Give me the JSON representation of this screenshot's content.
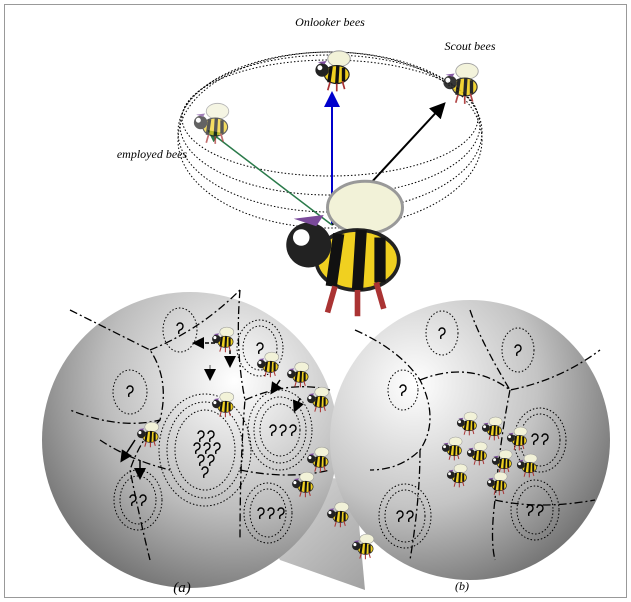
{
  "labels": {
    "onlooker": "Onlooker bees",
    "scout": "Scout bees",
    "employed": "employed bees",
    "a": "(a)",
    "b": "(b)"
  }
}
